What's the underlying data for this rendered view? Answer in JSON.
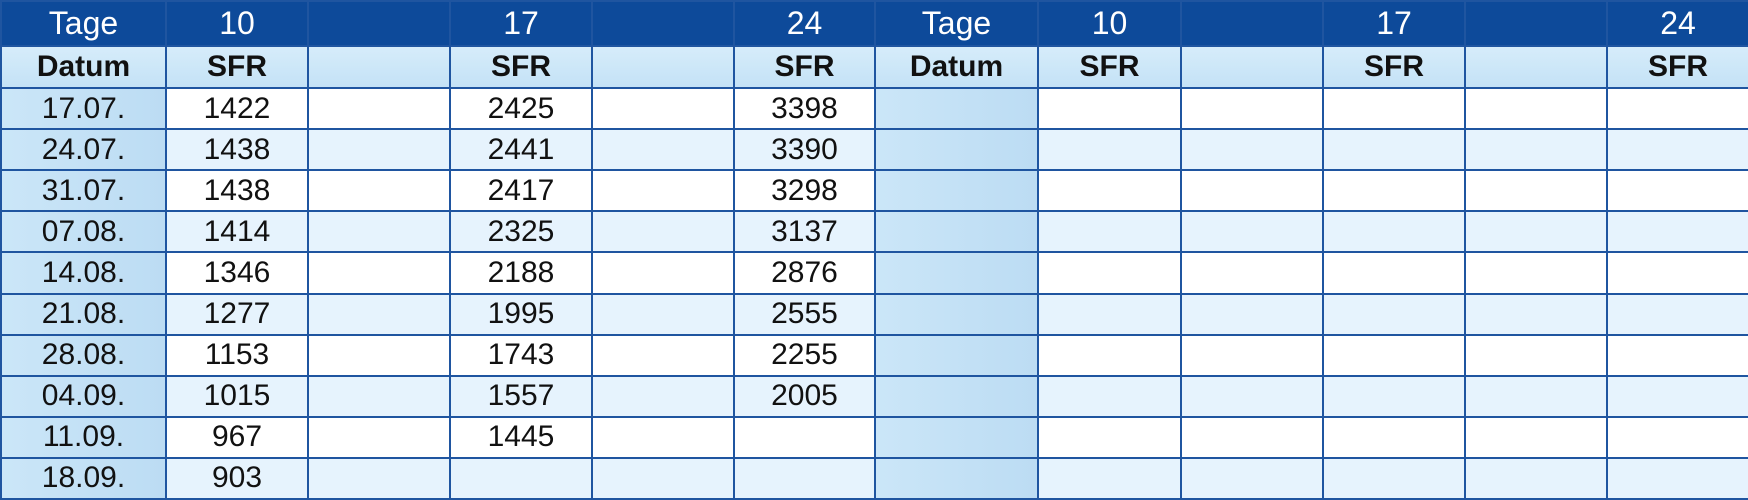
{
  "header": {
    "left": {
      "tage": "Tage",
      "days": [
        "10",
        "",
        "17",
        "",
        "24"
      ]
    },
    "right": {
      "tage": "Tage",
      "days": [
        "10",
        "",
        "17",
        "",
        "24"
      ]
    }
  },
  "subheader": {
    "left": {
      "datum": "Datum",
      "cols": [
        "SFR",
        "",
        "SFR",
        "",
        "SFR"
      ]
    },
    "right": {
      "datum": "Datum",
      "cols": [
        "SFR",
        "",
        "SFR",
        "",
        "SFR"
      ]
    }
  },
  "rows": [
    {
      "datum": "17.07.",
      "d10": "1422",
      "d17": "2425",
      "d24": "3398"
    },
    {
      "datum": "24.07.",
      "d10": "1438",
      "d17": "2441",
      "d24": "3390"
    },
    {
      "datum": "31.07.",
      "d10": "1438",
      "d17": "2417",
      "d24": "3298"
    },
    {
      "datum": "07.08.",
      "d10": "1414",
      "d17": "2325",
      "d24": "3137"
    },
    {
      "datum": "14.08.",
      "d10": "1346",
      "d17": "2188",
      "d24": "2876"
    },
    {
      "datum": "21.08.",
      "d10": "1277",
      "d17": "1995",
      "d24": "2555"
    },
    {
      "datum": "28.08.",
      "d10": "1153",
      "d17": "1743",
      "d24": "2255"
    },
    {
      "datum": "04.09.",
      "d10": "1015",
      "d17": "1557",
      "d24": "2005"
    },
    {
      "datum": "11.09.",
      "d10": "967",
      "d17": "1445",
      "d24": ""
    },
    {
      "datum": "18.09.",
      "d10": "903",
      "d17": "",
      "d24": ""
    }
  ],
  "colors": {
    "header_bg": "#0d4a9a",
    "border": "#1f55a0",
    "datum_col": "#c5e3f5",
    "alt_row": "#e6f3fd"
  }
}
